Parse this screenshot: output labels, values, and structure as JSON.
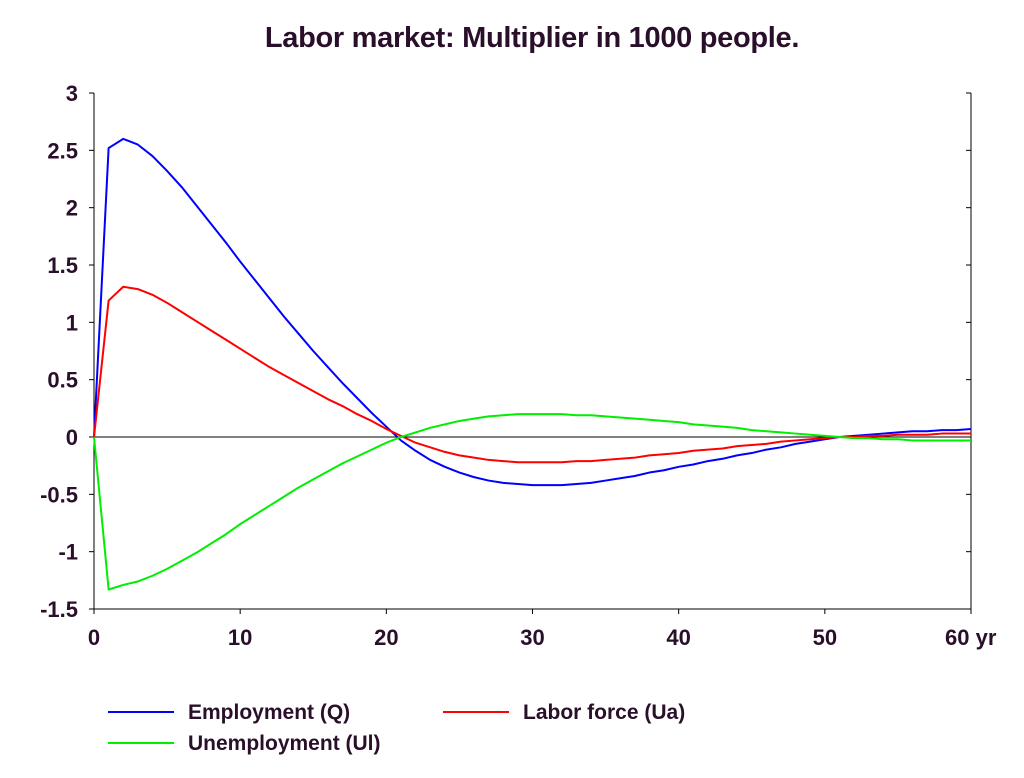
{
  "chart_data": {
    "type": "line",
    "title": "Labor market: Multiplier in 1000 people.",
    "x_unit": "yr",
    "xlim": [
      0,
      60
    ],
    "ylim": [
      -1.5,
      3
    ],
    "x_ticks": [
      0,
      10,
      20,
      30,
      40,
      50,
      60
    ],
    "y_ticks": [
      3,
      2.5,
      2,
      1.5,
      1,
      0.5,
      0,
      -0.5,
      -1,
      -1.5
    ],
    "x_tick_labels": [
      "0",
      "10",
      "20",
      "30",
      "40",
      "50",
      "60 yr"
    ],
    "y_tick_labels": [
      "3",
      "2.5",
      "2",
      "1.5",
      "1",
      "0.5",
      "0",
      "-0.5",
      "-1",
      "-1.5"
    ],
    "grid": false,
    "zero_line": true,
    "legend_position": "bottom",
    "series": [
      {
        "name": "Employment (Q)",
        "color": "#0000ff",
        "points": [
          [
            0,
            0
          ],
          [
            1,
            2.52
          ],
          [
            2,
            2.6
          ],
          [
            3,
            2.55
          ],
          [
            4,
            2.45
          ],
          [
            5,
            2.32
          ],
          [
            6,
            2.18
          ],
          [
            7,
            2.02
          ],
          [
            8,
            1.86
          ],
          [
            9,
            1.7
          ],
          [
            10,
            1.53
          ],
          [
            11,
            1.37
          ],
          [
            12,
            1.21
          ],
          [
            13,
            1.05
          ],
          [
            14,
            0.9
          ],
          [
            15,
            0.75
          ],
          [
            16,
            0.61
          ],
          [
            17,
            0.47
          ],
          [
            18,
            0.34
          ],
          [
            19,
            0.21
          ],
          [
            20,
            0.09
          ],
          [
            21,
            -0.03
          ],
          [
            22,
            -0.12
          ],
          [
            23,
            -0.2
          ],
          [
            24,
            -0.26
          ],
          [
            25,
            -0.31
          ],
          [
            26,
            -0.35
          ],
          [
            27,
            -0.38
          ],
          [
            28,
            -0.4
          ],
          [
            29,
            -0.41
          ],
          [
            30,
            -0.42
          ],
          [
            31,
            -0.42
          ],
          [
            32,
            -0.42
          ],
          [
            33,
            -0.41
          ],
          [
            34,
            -0.4
          ],
          [
            35,
            -0.38
          ],
          [
            36,
            -0.36
          ],
          [
            37,
            -0.34
          ],
          [
            38,
            -0.31
          ],
          [
            39,
            -0.29
          ],
          [
            40,
            -0.26
          ],
          [
            41,
            -0.24
          ],
          [
            42,
            -0.21
          ],
          [
            43,
            -0.19
          ],
          [
            44,
            -0.16
          ],
          [
            45,
            -0.14
          ],
          [
            46,
            -0.11
          ],
          [
            47,
            -0.09
          ],
          [
            48,
            -0.06
          ],
          [
            49,
            -0.04
          ],
          [
            50,
            -0.02
          ],
          [
            51,
            0
          ],
          [
            52,
            0.01
          ],
          [
            53,
            0.02
          ],
          [
            54,
            0.03
          ],
          [
            55,
            0.04
          ],
          [
            56,
            0.05
          ],
          [
            57,
            0.05
          ],
          [
            58,
            0.06
          ],
          [
            59,
            0.06
          ],
          [
            60,
            0.07
          ]
        ]
      },
      {
        "name": "Labor force (Ua)",
        "color": "#ff0000",
        "points": [
          [
            0,
            0
          ],
          [
            1,
            1.19
          ],
          [
            2,
            1.31
          ],
          [
            3,
            1.29
          ],
          [
            4,
            1.24
          ],
          [
            5,
            1.17
          ],
          [
            6,
            1.09
          ],
          [
            7,
            1.01
          ],
          [
            8,
            0.93
          ],
          [
            9,
            0.85
          ],
          [
            10,
            0.77
          ],
          [
            11,
            0.69
          ],
          [
            12,
            0.61
          ],
          [
            13,
            0.54
          ],
          [
            14,
            0.47
          ],
          [
            15,
            0.4
          ],
          [
            16,
            0.33
          ],
          [
            17,
            0.27
          ],
          [
            18,
            0.2
          ],
          [
            19,
            0.14
          ],
          [
            20,
            0.07
          ],
          [
            21,
            0.01
          ],
          [
            22,
            -0.05
          ],
          [
            23,
            -0.09
          ],
          [
            24,
            -0.13
          ],
          [
            25,
            -0.16
          ],
          [
            26,
            -0.18
          ],
          [
            27,
            -0.2
          ],
          [
            28,
            -0.21
          ],
          [
            29,
            -0.22
          ],
          [
            30,
            -0.22
          ],
          [
            31,
            -0.22
          ],
          [
            32,
            -0.22
          ],
          [
            33,
            -0.21
          ],
          [
            34,
            -0.21
          ],
          [
            35,
            -0.2
          ],
          [
            36,
            -0.19
          ],
          [
            37,
            -0.18
          ],
          [
            38,
            -0.16
          ],
          [
            39,
            -0.15
          ],
          [
            40,
            -0.14
          ],
          [
            41,
            -0.12
          ],
          [
            42,
            -0.11
          ],
          [
            43,
            -0.1
          ],
          [
            44,
            -0.08
          ],
          [
            45,
            -0.07
          ],
          [
            46,
            -0.06
          ],
          [
            47,
            -0.04
          ],
          [
            48,
            -0.03
          ],
          [
            49,
            -0.02
          ],
          [
            50,
            -0.01
          ],
          [
            51,
            0
          ],
          [
            52,
            0
          ],
          [
            53,
            0.01
          ],
          [
            54,
            0.01
          ],
          [
            55,
            0.02
          ],
          [
            56,
            0.02
          ],
          [
            57,
            0.02
          ],
          [
            58,
            0.03
          ],
          [
            59,
            0.03
          ],
          [
            60,
            0.03
          ]
        ]
      },
      {
        "name": "Unemployment (Ul)",
        "color": "#00ee00",
        "points": [
          [
            0,
            0
          ],
          [
            1,
            -1.33
          ],
          [
            2,
            -1.29
          ],
          [
            3,
            -1.26
          ],
          [
            4,
            -1.21
          ],
          [
            5,
            -1.15
          ],
          [
            6,
            -1.08
          ],
          [
            7,
            -1.01
          ],
          [
            8,
            -0.93
          ],
          [
            9,
            -0.85
          ],
          [
            10,
            -0.76
          ],
          [
            11,
            -0.68
          ],
          [
            12,
            -0.6
          ],
          [
            13,
            -0.52
          ],
          [
            14,
            -0.44
          ],
          [
            15,
            -0.37
          ],
          [
            16,
            -0.3
          ],
          [
            17,
            -0.23
          ],
          [
            18,
            -0.17
          ],
          [
            19,
            -0.11
          ],
          [
            20,
            -0.05
          ],
          [
            21,
            0
          ],
          [
            22,
            0.04
          ],
          [
            23,
            0.08
          ],
          [
            24,
            0.11
          ],
          [
            25,
            0.14
          ],
          [
            26,
            0.16
          ],
          [
            27,
            0.18
          ],
          [
            28,
            0.19
          ],
          [
            29,
            0.2
          ],
          [
            30,
            0.2
          ],
          [
            31,
            0.2
          ],
          [
            32,
            0.2
          ],
          [
            33,
            0.19
          ],
          [
            34,
            0.19
          ],
          [
            35,
            0.18
          ],
          [
            36,
            0.17
          ],
          [
            37,
            0.16
          ],
          [
            38,
            0.15
          ],
          [
            39,
            0.14
          ],
          [
            40,
            0.13
          ],
          [
            41,
            0.11
          ],
          [
            42,
            0.1
          ],
          [
            43,
            0.09
          ],
          [
            44,
            0.08
          ],
          [
            45,
            0.06
          ],
          [
            46,
            0.05
          ],
          [
            47,
            0.04
          ],
          [
            48,
            0.03
          ],
          [
            49,
            0.02
          ],
          [
            50,
            0.01
          ],
          [
            51,
            0
          ],
          [
            52,
            -0.01
          ],
          [
            53,
            -0.01
          ],
          [
            54,
            -0.02
          ],
          [
            55,
            -0.02
          ],
          [
            56,
            -0.03
          ],
          [
            57,
            -0.03
          ],
          [
            58,
            -0.03
          ],
          [
            59,
            -0.03
          ],
          [
            60,
            -0.03
          ]
        ]
      }
    ]
  }
}
